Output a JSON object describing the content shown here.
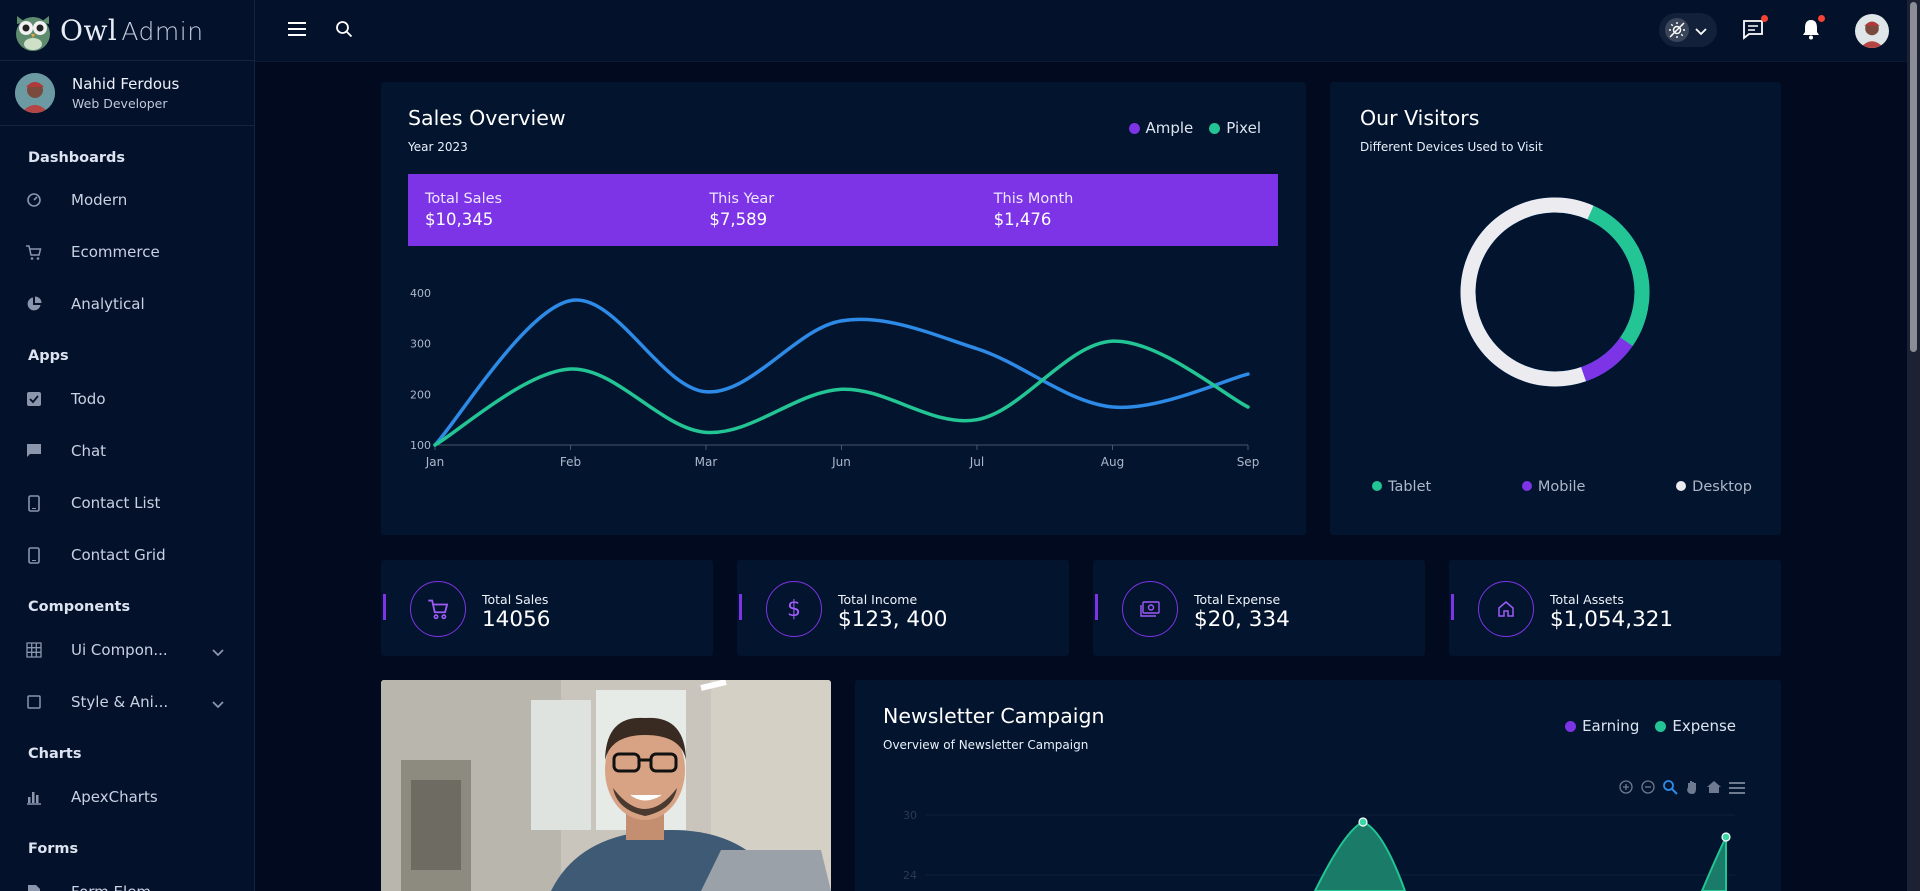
{
  "app": {
    "logo_word": "Owl",
    "logo_suffix": "Admin"
  },
  "profile": {
    "name": "Nahid Ferdous",
    "role": "Web Developer"
  },
  "sidebar": {
    "sections": [
      {
        "label": "Dashboards",
        "items": [
          {
            "label": "Modern",
            "icon": "dashboard-icon"
          },
          {
            "label": "Ecommerce",
            "icon": "cart-icon"
          },
          {
            "label": "Analytical",
            "icon": "pie-icon"
          }
        ]
      },
      {
        "label": "Apps",
        "items": [
          {
            "label": "Todo",
            "icon": "checkbox-icon"
          },
          {
            "label": "Chat",
            "icon": "chat-icon"
          },
          {
            "label": "Contact List",
            "icon": "phone-icon"
          },
          {
            "label": "Contact Grid",
            "icon": "phone-icon"
          }
        ]
      },
      {
        "label": "Components",
        "items": [
          {
            "label": "Ui Compon...",
            "icon": "grid-icon",
            "expandable": true
          },
          {
            "label": "Style & Ani...",
            "icon": "square-icon",
            "expandable": true
          }
        ]
      },
      {
        "label": "Charts",
        "items": [
          {
            "label": "ApexCharts",
            "icon": "bar-chart-icon"
          }
        ]
      },
      {
        "label": "Forms",
        "items": [
          {
            "label": "Form Elem...",
            "icon": "form-icon",
            "expandable": true
          }
        ]
      }
    ]
  },
  "sales_overview": {
    "title": "Sales Overview",
    "subtitle": "Year 2023",
    "summary": [
      {
        "label": "Total Sales",
        "value": "$10,345"
      },
      {
        "label": "This Year",
        "value": "$7,589"
      },
      {
        "label": "This Month",
        "value": "$1,476"
      }
    ]
  },
  "visitors": {
    "title": "Our Visitors",
    "subtitle": "Different Devices Used to Visit"
  },
  "stats": [
    {
      "label": "Total Sales",
      "value": "14056",
      "icon": "cart-icon"
    },
    {
      "label": "Total Income",
      "value": "$123, 400",
      "icon": "dollar-icon"
    },
    {
      "label": "Total Expense",
      "value": "$20, 334",
      "icon": "money-icon"
    },
    {
      "label": "Total Assets",
      "value": "$1,054,321",
      "icon": "home-icon"
    }
  ],
  "newsletter": {
    "title": "Newsletter Campaign",
    "subtitle": "Overview of Newsletter Campaign"
  },
  "colors": {
    "accent": "#7c34e6",
    "blue": "#2d8ae6",
    "green": "#23c594",
    "white": "#ececf0"
  },
  "chart_data": [
    {
      "type": "line",
      "x": [
        "Jan",
        "Feb",
        "Mar",
        "Jun",
        "Jul",
        "Aug",
        "Sep"
      ],
      "series": [
        {
          "name": "Ample",
          "values": [
            100,
            385,
            205,
            345,
            290,
            175,
            240
          ],
          "color": "#2d8ae6"
        },
        {
          "name": "Pixel",
          "values": [
            100,
            250,
            125,
            210,
            150,
            305,
            175
          ],
          "color": "#23c594"
        }
      ],
      "yticks": [
        100,
        200,
        300,
        400
      ],
      "ylim": [
        100,
        400
      ],
      "legend": "top-right"
    },
    {
      "type": "pie",
      "donut": true,
      "labels": [
        "Tablet",
        "Mobile",
        "Desktop"
      ],
      "values": [
        28,
        10,
        62
      ],
      "colors": [
        "#23c594",
        "#7c34e6",
        "#ececf0"
      ],
      "legend": "bottom"
    },
    {
      "type": "area",
      "series": [
        {
          "name": "Earning",
          "color": "#7c34e6"
        },
        {
          "name": "Expense",
          "color": "#23c594"
        }
      ],
      "yticks": [
        24,
        30
      ],
      "legend": "top-right"
    }
  ]
}
